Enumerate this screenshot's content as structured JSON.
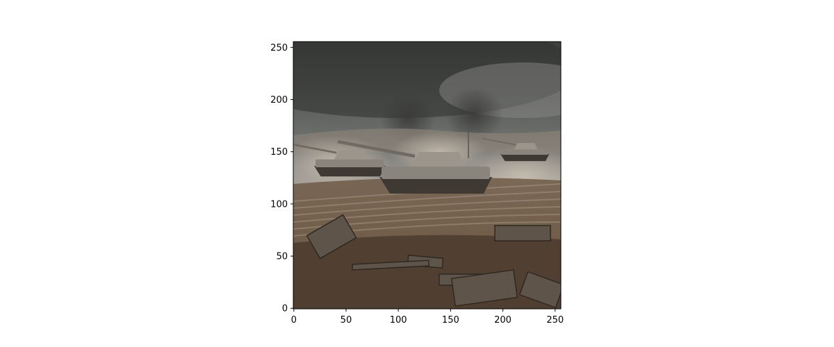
{
  "figure": {
    "image_description_colors": {
      "sky_top": "#3f413f",
      "sky_mid": "#6c6f6b",
      "haze": "#a7a19a",
      "ground_top": "#8b7a68",
      "ground_mid": "#6f5a47",
      "ground_bottom": "#4a3a2d",
      "tank_body": "#8a857c",
      "tank_shadow": "#3b3530",
      "box_color": "#0000ff"
    },
    "x_axis": {
      "ticks": [
        0,
        50,
        100,
        150,
        200,
        250
      ],
      "tick_labels": [
        "0",
        "50",
        "100",
        "150",
        "200",
        "250"
      ],
      "range": [
        -0.5,
        255.5
      ]
    },
    "y_axis": {
      "ticks": [
        0,
        50,
        100,
        150,
        200,
        250
      ],
      "tick_labels": [
        "0",
        "50",
        "100",
        "150",
        "200",
        "250"
      ],
      "range": [
        255.5,
        -0.5
      ],
      "inverted": true
    },
    "bounding_box": {
      "x_min": 104,
      "y_min": 140,
      "x_max": 180,
      "y_max": 171,
      "color": "#0000ff"
    }
  }
}
